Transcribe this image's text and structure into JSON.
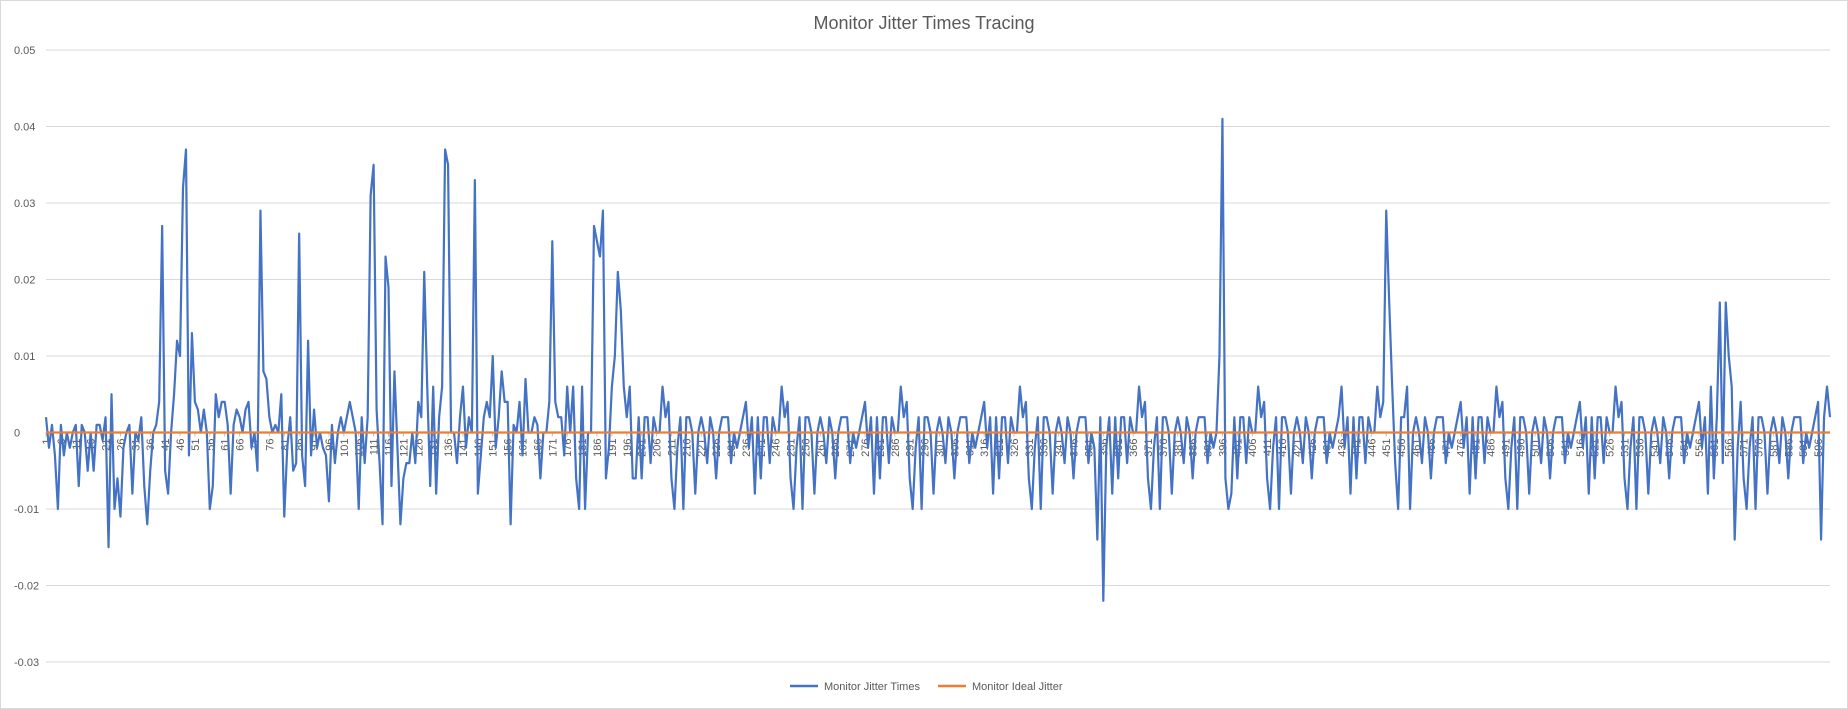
{
  "colors": {
    "jitter": "#4472C4",
    "ideal": "#ED7D31",
    "grid": "#D9D9D9",
    "text": "#595959"
  },
  "chart_data": {
    "type": "line",
    "title": "Monitor Jitter Times Tracing",
    "xlabel": "",
    "ylabel": "",
    "ylim": [
      -0.03,
      0.05
    ],
    "yticks": [
      -0.03,
      -0.02,
      -0.01,
      0,
      0.01,
      0.02,
      0.03,
      0.04,
      0.05
    ],
    "ytick_labels": [
      "-0.03",
      "-0.02",
      "-0.01",
      "0",
      "0.01",
      "0.02",
      "0.03",
      "0.04",
      "0.05"
    ],
    "x_count": 600,
    "xtick_start": 1,
    "xtick_step": 5,
    "grid": true,
    "legend_position": "bottom",
    "series": [
      {
        "name": "Monitor Jitter Times",
        "keypoints": [
          [
            1,
            0.002
          ],
          [
            2,
            -0.002
          ],
          [
            3,
            0.001
          ],
          [
            4,
            -0.003
          ],
          [
            5,
            -0.01
          ],
          [
            6,
            0.001
          ],
          [
            7,
            -0.003
          ],
          [
            8,
            0.0
          ],
          [
            9,
            -0.002
          ],
          [
            10,
            0.0
          ],
          [
            11,
            0.001
          ],
          [
            12,
            -0.007
          ],
          [
            13,
            0.001
          ],
          [
            14,
            0.0
          ],
          [
            15,
            -0.005
          ],
          [
            16,
            0.0
          ],
          [
            17,
            -0.005
          ],
          [
            18,
            0.001
          ],
          [
            19,
            0.001
          ],
          [
            20,
            -0.001
          ],
          [
            21,
            0.002
          ],
          [
            22,
            -0.015
          ],
          [
            23,
            0.005
          ],
          [
            24,
            -0.01
          ],
          [
            25,
            -0.006
          ],
          [
            26,
            -0.011
          ],
          [
            27,
            -0.002
          ],
          [
            28,
            0.0
          ],
          [
            29,
            0.001
          ],
          [
            30,
            -0.008
          ],
          [
            31,
            0.0
          ],
          [
            32,
            -0.001
          ],
          [
            33,
            0.002
          ],
          [
            34,
            -0.007
          ],
          [
            35,
            -0.012
          ],
          [
            36,
            -0.005
          ],
          [
            37,
            0.0
          ],
          [
            38,
            0.001
          ],
          [
            39,
            0.004
          ],
          [
            40,
            0.027
          ],
          [
            41,
            -0.005
          ],
          [
            42,
            -0.008
          ],
          [
            43,
            0.0
          ],
          [
            44,
            0.005
          ],
          [
            45,
            0.012
          ],
          [
            46,
            0.01
          ],
          [
            47,
            0.032
          ],
          [
            48,
            0.037
          ],
          [
            49,
            -0.003
          ],
          [
            50,
            0.013
          ],
          [
            51,
            0.004
          ],
          [
            52,
            0.003
          ],
          [
            53,
            0.0
          ],
          [
            54,
            0.003
          ],
          [
            55,
            0.0
          ],
          [
            56,
            -0.01
          ],
          [
            57,
            -0.007
          ],
          [
            58,
            0.005
          ],
          [
            59,
            0.002
          ],
          [
            60,
            0.004
          ],
          [
            61,
            0.004
          ],
          [
            62,
            0.001
          ],
          [
            63,
            -0.008
          ],
          [
            64,
            0.001
          ],
          [
            65,
            0.003
          ],
          [
            66,
            0.002
          ],
          [
            67,
            0.0
          ],
          [
            68,
            0.003
          ],
          [
            69,
            0.004
          ],
          [
            70,
            -0.002
          ],
          [
            71,
            0.0
          ],
          [
            72,
            -0.005
          ],
          [
            73,
            0.029
          ],
          [
            74,
            0.008
          ],
          [
            75,
            0.007
          ],
          [
            76,
            0.002
          ],
          [
            77,
            0.0
          ],
          [
            78,
            0.001
          ],
          [
            79,
            0.0
          ],
          [
            80,
            0.005
          ],
          [
            81,
            -0.011
          ],
          [
            82,
            -0.002
          ],
          [
            83,
            0.002
          ],
          [
            84,
            -0.005
          ],
          [
            85,
            -0.004
          ],
          [
            86,
            0.026
          ],
          [
            87,
            -0.003
          ],
          [
            88,
            -0.007
          ],
          [
            89,
            0.012
          ],
          [
            90,
            -0.003
          ],
          [
            91,
            0.003
          ],
          [
            92,
            -0.002
          ],
          [
            93,
            0.0
          ],
          [
            94,
            -0.002
          ],
          [
            95,
            -0.003
          ],
          [
            96,
            -0.009
          ],
          [
            97,
            0.001
          ],
          [
            98,
            -0.004
          ],
          [
            99,
            0.0
          ],
          [
            100,
            0.002
          ],
          [
            101,
            0.0
          ],
          [
            102,
            0.002
          ],
          [
            103,
            0.004
          ],
          [
            104,
            0.002
          ],
          [
            105,
            0.0
          ],
          [
            106,
            -0.01
          ],
          [
            107,
            0.002
          ],
          [
            108,
            -0.004
          ],
          [
            109,
            0.002
          ],
          [
            110,
            0.031
          ],
          [
            111,
            0.035
          ],
          [
            112,
            0.003
          ],
          [
            113,
            -0.004
          ],
          [
            114,
            -0.012
          ],
          [
            115,
            0.023
          ],
          [
            116,
            0.019
          ],
          [
            117,
            -0.007
          ],
          [
            118,
            0.008
          ],
          [
            119,
            -0.002
          ],
          [
            120,
            -0.012
          ],
          [
            121,
            -0.006
          ],
          [
            122,
            -0.004
          ],
          [
            123,
            -0.004
          ],
          [
            124,
            0.0
          ],
          [
            125,
            -0.004
          ],
          [
            126,
            0.004
          ],
          [
            127,
            0.002
          ],
          [
            128,
            0.021
          ],
          [
            129,
            0.006
          ],
          [
            130,
            -0.007
          ],
          [
            131,
            0.006
          ],
          [
            132,
            -0.008
          ],
          [
            133,
            0.002
          ],
          [
            134,
            0.006
          ],
          [
            135,
            0.037
          ],
          [
            136,
            0.035
          ],
          [
            137,
            0.0
          ],
          [
            138,
            0.0
          ],
          [
            139,
            -0.004
          ],
          [
            140,
            0.002
          ],
          [
            141,
            0.006
          ],
          [
            142,
            -0.002
          ],
          [
            143,
            0.002
          ],
          [
            144,
            0.0
          ],
          [
            145,
            0.033
          ],
          [
            146,
            -0.008
          ],
          [
            147,
            -0.003
          ],
          [
            148,
            0.002
          ],
          [
            149,
            0.004
          ],
          [
            150,
            0.002
          ],
          [
            151,
            0.01
          ],
          [
            152,
            -0.002
          ],
          [
            153,
            0.002
          ],
          [
            154,
            0.008
          ],
          [
            155,
            0.004
          ],
          [
            156,
            0.004
          ],
          [
            157,
            -0.012
          ],
          [
            158,
            0.001
          ],
          [
            159,
            0.0
          ],
          [
            160,
            0.004
          ],
          [
            161,
            -0.003
          ],
          [
            162,
            0.007
          ],
          [
            163,
            0.0
          ],
          [
            164,
            0.0
          ],
          [
            165,
            0.002
          ],
          [
            166,
            0.001
          ],
          [
            167,
            -0.006
          ],
          [
            168,
            0.0
          ],
          [
            169,
            0.0
          ],
          [
            170,
            0.004
          ],
          [
            171,
            0.025
          ],
          [
            172,
            0.004
          ],
          [
            173,
            0.002
          ],
          [
            174,
            0.002
          ],
          [
            175,
            -0.003
          ],
          [
            176,
            0.006
          ],
          [
            177,
            0.0
          ],
          [
            178,
            0.006
          ],
          [
            179,
            -0.006
          ],
          [
            180,
            -0.01
          ],
          [
            181,
            0.006
          ],
          [
            182,
            -0.01
          ],
          [
            183,
            0.0
          ],
          [
            184,
            0.0
          ],
          [
            185,
            0.027
          ],
          [
            186,
            0.025
          ],
          [
            187,
            0.023
          ],
          [
            188,
            0.029
          ],
          [
            189,
            -0.006
          ],
          [
            190,
            -0.002
          ],
          [
            191,
            0.006
          ],
          [
            192,
            0.01
          ],
          [
            193,
            0.021
          ],
          [
            194,
            0.016
          ],
          [
            195,
            0.006
          ],
          [
            196,
            0.002
          ],
          [
            197,
            0.006
          ],
          [
            198,
            -0.006
          ],
          [
            199,
            -0.006
          ],
          [
            200,
            0.002
          ],
          [
            201,
            -0.006
          ]
        ],
        "pattern": [
          0.002,
          -0.004,
          0.0,
          0.002,
          -0.01,
          0.002,
          0.0,
          -0.006,
          0.002,
          0.0,
          0.002,
          -0.002,
          0.004,
          -0.008,
          0.002,
          0.0,
          0.006,
          -0.004,
          0.002,
          -0.002,
          0.0,
          0.002,
          -0.006,
          0.002,
          0.0,
          -0.01,
          0.002,
          0.002,
          -0.004,
          0.0,
          0.004,
          -0.002,
          0.002,
          -0.008,
          0.0,
          0.002,
          0.002,
          -0.006,
          0.0,
          0.002
        ],
        "spikes": [
          [
            354,
            -0.014
          ],
          [
            356,
            -0.022
          ],
          [
            395,
            0.01
          ],
          [
            396,
            0.041
          ],
          [
            397,
            -0.006
          ],
          [
            398,
            -0.01
          ],
          [
            436,
            0.006
          ],
          [
            451,
            0.029
          ],
          [
            452,
            0.017
          ],
          [
            453,
            0.006
          ],
          [
            454,
            -0.004
          ],
          [
            458,
            0.006
          ],
          [
            459,
            -0.01
          ],
          [
            560,
            0.006
          ],
          [
            563,
            0.017
          ],
          [
            565,
            0.017
          ],
          [
            566,
            0.01
          ],
          [
            567,
            0.006
          ],
          [
            568,
            -0.014
          ],
          [
            569,
            -0.002
          ],
          [
            597,
            -0.014
          ],
          [
            599,
            0.006
          ]
        ]
      },
      {
        "name": "Monitor Ideal Jitter",
        "constant": 0
      }
    ]
  }
}
